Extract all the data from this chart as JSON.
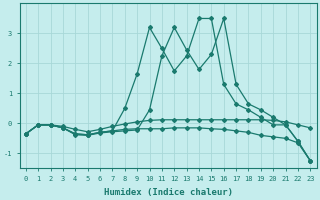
{
  "xlabel": "Humidex (Indice chaleur)",
  "xlim": [
    -0.5,
    23.5
  ],
  "ylim": [
    -1.5,
    4.0
  ],
  "xticks": [
    0,
    1,
    2,
    3,
    4,
    5,
    6,
    7,
    8,
    9,
    10,
    11,
    12,
    13,
    14,
    15,
    16,
    17,
    18,
    19,
    20,
    21,
    22,
    23
  ],
  "yticks": [
    -1,
    0,
    1,
    2,
    3
  ],
  "bg_color": "#c5eded",
  "grid_color": "#a8d8d8",
  "line_color": "#1a7a6e",
  "line1_x": [
    0,
    1,
    2,
    3,
    4,
    5,
    6,
    7,
    8,
    9,
    10,
    11,
    12,
    13,
    14,
    15,
    16,
    17,
    18,
    19,
    20,
    21,
    22,
    23
  ],
  "line1_y": [
    -0.35,
    -0.05,
    -0.05,
    -0.15,
    -0.35,
    -0.38,
    -0.3,
    -0.25,
    -0.2,
    -0.18,
    -0.18,
    -0.18,
    -0.15,
    -0.15,
    -0.15,
    -0.18,
    -0.2,
    -0.25,
    -0.3,
    -0.4,
    -0.45,
    -0.5,
    -0.65,
    -1.25
  ],
  "line2_x": [
    0,
    1,
    2,
    3,
    4,
    5,
    6,
    7,
    8,
    9,
    10,
    11,
    12,
    13,
    14,
    15,
    16,
    17,
    18,
    19,
    20,
    21,
    22,
    23
  ],
  "line2_y": [
    -0.35,
    -0.05,
    -0.05,
    -0.15,
    -0.38,
    -0.4,
    -0.32,
    -0.28,
    -0.25,
    -0.22,
    0.45,
    2.25,
    3.2,
    2.45,
    1.8,
    2.3,
    3.5,
    1.3,
    0.65,
    0.45,
    0.2,
    -0.05,
    -0.6,
    -1.25
  ],
  "line3_x": [
    0,
    1,
    2,
    3,
    4,
    5,
    6,
    7,
    8,
    9,
    10,
    11,
    12,
    13,
    14,
    15,
    16,
    17,
    18,
    19,
    20,
    21,
    22,
    23
  ],
  "line3_y": [
    -0.35,
    -0.05,
    -0.05,
    -0.15,
    -0.35,
    -0.38,
    -0.3,
    -0.25,
    0.5,
    1.65,
    3.2,
    2.5,
    1.75,
    2.25,
    3.5,
    3.5,
    1.3,
    0.65,
    0.45,
    0.2,
    -0.05,
    -0.05,
    -0.6,
    -1.25
  ],
  "line4_x": [
    0,
    1,
    2,
    3,
    4,
    5,
    6,
    7,
    8,
    9,
    10,
    11,
    12,
    13,
    14,
    15,
    16,
    17,
    18,
    19,
    20,
    21,
    22,
    23
  ],
  "line4_y": [
    -0.35,
    -0.05,
    -0.05,
    -0.1,
    -0.2,
    -0.28,
    -0.2,
    -0.1,
    -0.02,
    0.05,
    0.1,
    0.12,
    0.12,
    0.12,
    0.12,
    0.12,
    0.12,
    0.12,
    0.12,
    0.12,
    0.1,
    0.05,
    -0.05,
    -0.15
  ]
}
